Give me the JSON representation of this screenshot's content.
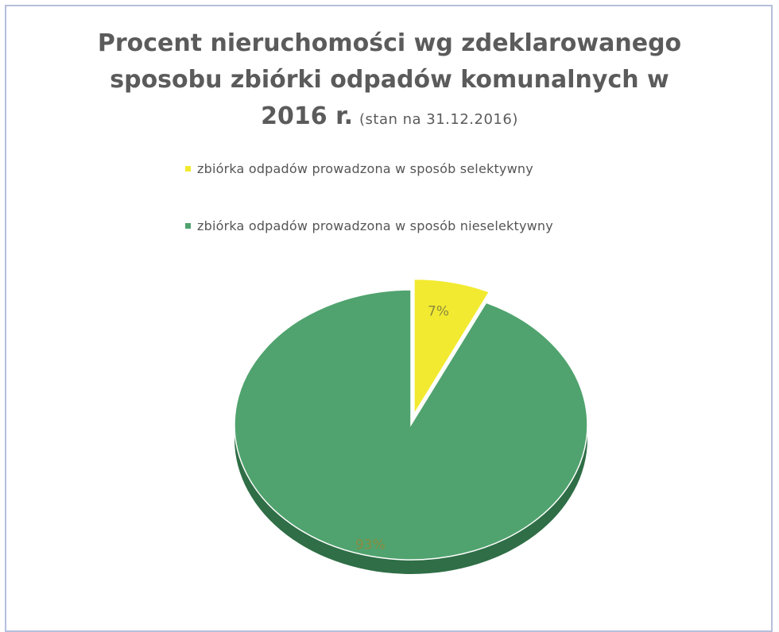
{
  "title": {
    "line1": "Procent nieruchomości wg zdeklarowanego",
    "line2": "sposobu zbiórki odpadów komunalnych w",
    "year": "2016 r.",
    "note": "(stan na 31.12.2016)"
  },
  "colors": {
    "selective": "#f2ea30",
    "selective_side": "#c8c020",
    "nonselective": "#50a36e",
    "nonselective_side": "#2f6e46",
    "label_text": "#8a8a40"
  },
  "chart_data": {
    "type": "pie",
    "title": "Procent nieruchomości wg zdeklarowanego sposobu zbiórki odpadów komunalnych w 2016 r. (stan na 31.12.2016)",
    "categories": [
      "zbiórka odpadów prowadzona w sposób selektywny",
      "zbiórka odpadów prowadzona w sposób nieselektywny"
    ],
    "values": [
      7,
      93
    ],
    "data_labels": [
      "7%",
      "93%"
    ],
    "legend_position": "top",
    "exploded": [
      true,
      false
    ],
    "style": "3d"
  }
}
